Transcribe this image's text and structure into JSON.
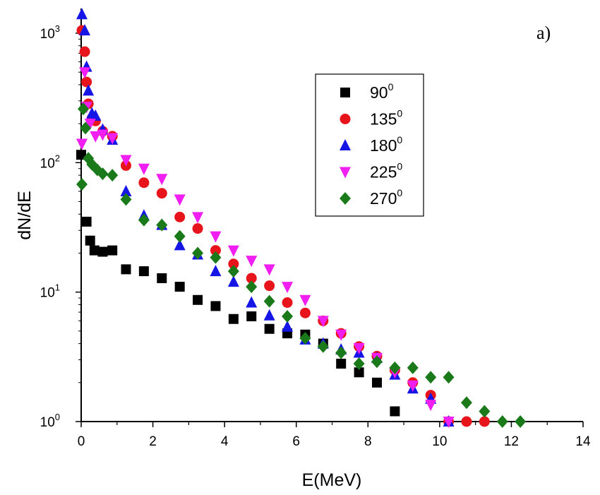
{
  "chart_data": {
    "type": "scatter",
    "title": "",
    "panel_label": "a)",
    "xlabel": "E(MeV)",
    "ylabel": "dN/dE",
    "xlim": [
      0,
      14
    ],
    "ylim": [
      1,
      1600
    ],
    "y_scale": "log",
    "x_ticks": [
      "0",
      "2",
      "4",
      "6",
      "8",
      "10",
      "12",
      "14"
    ],
    "y_ticks": [
      {
        "base": "10",
        "exp": "0"
      },
      {
        "base": "10",
        "exp": "1"
      },
      {
        "base": "10",
        "exp": "2"
      },
      {
        "base": "10",
        "exp": "3"
      }
    ],
    "grid": false,
    "legend_position": "upper-middle-right",
    "series": [
      {
        "name": "90",
        "name_sup": "0",
        "marker": "square",
        "color": "#000000",
        "x": [
          0.0,
          0.15,
          0.25,
          0.37,
          0.6,
          0.87,
          1.25,
          1.75,
          2.25,
          2.75,
          3.25,
          3.75,
          4.25,
          4.75,
          5.25,
          5.75,
          6.25,
          6.75,
          7.25,
          7.75,
          8.25,
          8.75
        ],
        "y": [
          115,
          35,
          25,
          21,
          20.5,
          21,
          15,
          14.5,
          12.8,
          11,
          8.7,
          7.8,
          6.2,
          6.5,
          5.2,
          4.8,
          4.7,
          4.0,
          2.8,
          2.4,
          2.0,
          1.2
        ]
      },
      {
        "name": "135",
        "name_sup": "0",
        "marker": "circle",
        "color": "#e8141c",
        "x": [
          0.02,
          0.1,
          0.15,
          0.2,
          0.3,
          0.4,
          0.6,
          0.87,
          1.25,
          1.75,
          2.25,
          2.75,
          3.25,
          3.75,
          4.25,
          4.75,
          5.25,
          5.75,
          6.25,
          6.75,
          7.25,
          7.75,
          8.25,
          8.75,
          9.25,
          9.75,
          10.25,
          10.75,
          11.25
        ],
        "y": [
          1050,
          720,
          420,
          285,
          220,
          210,
          175,
          160,
          95,
          70,
          58,
          38,
          31,
          21,
          16.5,
          12.8,
          11.2,
          8.3,
          6.9,
          6.0,
          4.8,
          3.8,
          3.2,
          2.5,
          2.0,
          1.6,
          1.0,
          1.0,
          1.0
        ]
      },
      {
        "name": "180",
        "name_sup": "0",
        "marker": "triangle-up",
        "color": "#1515e6",
        "x": [
          0.02,
          0.1,
          0.15,
          0.2,
          0.3,
          0.4,
          0.6,
          0.87,
          1.25,
          1.75,
          2.25,
          2.75,
          3.25,
          3.75,
          4.25,
          4.75,
          5.25,
          5.75,
          6.25,
          6.75,
          7.25,
          7.75,
          8.25,
          8.75,
          9.25,
          9.75,
          10.25
        ],
        "y": [
          1400,
          1050,
          550,
          360,
          240,
          230,
          180,
          150,
          60,
          39,
          33,
          23,
          19.5,
          14.5,
          12,
          8.3,
          6.6,
          5.4,
          4.3,
          4.0,
          3.6,
          3.4,
          3.1,
          2.3,
          1.8,
          1.5,
          1.0
        ]
      },
      {
        "name": "225",
        "name_sup": "0",
        "marker": "triangle-down",
        "color": "#f01ef0",
        "x": [
          0.02,
          0.1,
          0.15,
          0.25,
          0.4,
          0.6,
          0.87,
          1.25,
          1.75,
          2.25,
          2.75,
          3.25,
          3.75,
          4.25,
          4.75,
          5.25,
          5.75,
          6.25,
          6.75,
          7.25,
          7.75,
          8.25,
          8.75,
          9.25,
          9.75,
          10.25
        ],
        "y": [
          140,
          500,
          270,
          200,
          160,
          165,
          155,
          105,
          90,
          75,
          52,
          38,
          27,
          21,
          17.5,
          15,
          11,
          8.7,
          6.0,
          4.7,
          3.7,
          3.1,
          2.4,
          1.9,
          1.35,
          1.0
        ]
      },
      {
        "name": "270",
        "name_sup": "0",
        "marker": "diamond",
        "color": "#1a7a1a",
        "x": [
          0.02,
          0.06,
          0.12,
          0.2,
          0.3,
          0.45,
          0.6,
          0.87,
          1.25,
          1.75,
          2.25,
          2.75,
          3.25,
          3.75,
          4.25,
          4.75,
          5.25,
          5.75,
          6.25,
          6.75,
          7.25,
          7.75,
          8.25,
          8.75,
          9.25,
          9.75,
          10.25,
          10.75,
          11.25,
          11.75,
          12.25
        ],
        "y": [
          68,
          260,
          185,
          108,
          97,
          88,
          82,
          80,
          52,
          36,
          33,
          27,
          20,
          18.5,
          14.5,
          11,
          8.5,
          6.5,
          4.4,
          3.8,
          3.4,
          2.8,
          2.9,
          2.6,
          2.6,
          2.2,
          2.2,
          1.4,
          1.2,
          1.0,
          1.0
        ]
      }
    ]
  }
}
